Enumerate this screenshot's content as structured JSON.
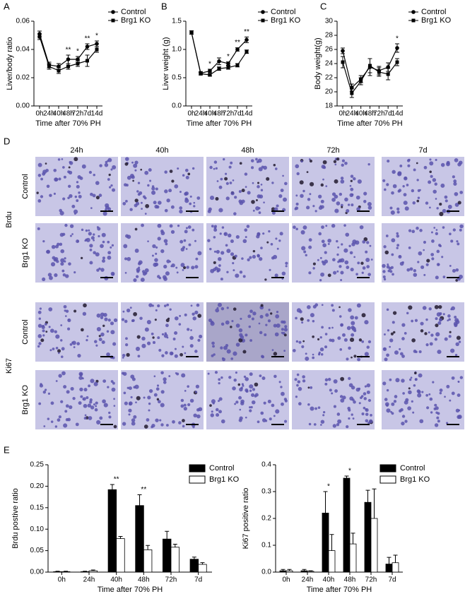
{
  "chart_data": [
    {
      "type": "line",
      "panel": "A",
      "ylabel": "Liver/body ratio",
      "xlabel": "Time after 70% PH",
      "categories": [
        "0h",
        "24h",
        "40h",
        "48h",
        "72h",
        "7d",
        "14d"
      ],
      "ylim": [
        0,
        0.06
      ],
      "yticks": [
        {
          "value": 0,
          "label": "0.00"
        },
        0.02,
        0.04,
        0.06
      ],
      "legend": "outside-top-right",
      "series": [
        {
          "name": "Control",
          "color": "#000000",
          "marker": "circle",
          "values": [
            0.051,
            0.029,
            0.028,
            0.033,
            0.033,
            0.042,
            0.044
          ],
          "errors": [
            0.002,
            0.002,
            0.002,
            0.003,
            0.002,
            0.002,
            0.002
          ]
        },
        {
          "name": "Brg1 KO",
          "color": "#000000",
          "marker": "square",
          "values": [
            0.049,
            0.028,
            0.025,
            0.028,
            0.03,
            0.032,
            0.04
          ],
          "errors": [
            0.002,
            0.002,
            0.002,
            0.002,
            0.002,
            0.004,
            0.002
          ]
        }
      ],
      "annotations": [
        {
          "x": "48h",
          "text": "**"
        },
        {
          "x": "72h",
          "text": "*"
        },
        {
          "x": "7d",
          "text": "**"
        },
        {
          "x": "14d",
          "text": "*"
        }
      ]
    },
    {
      "type": "line",
      "panel": "B",
      "ylabel": "Liver weight (g)",
      "xlabel": "Time after 70% PH",
      "categories": [
        "0h",
        "24h",
        "40h",
        "48h",
        "72h",
        "7d",
        "14d"
      ],
      "ylim": [
        0,
        1.5
      ],
      "yticks": [
        {
          "value": 0,
          "label": "0.0"
        },
        0.5,
        {
          "value": 1,
          "label": "1.0"
        },
        1.5
      ],
      "legend": "outside-top-right",
      "series": [
        {
          "name": "Control",
          "color": "#000000",
          "marker": "circle",
          "values": [
            1.3,
            0.58,
            0.62,
            0.79,
            0.75,
            1.0,
            1.17
          ],
          "errors": [
            0.03,
            0.03,
            0.03,
            0.06,
            0.03,
            0.03,
            0.05
          ]
        },
        {
          "name": "Brg1 KO",
          "color": "#000000",
          "marker": "square",
          "values": [
            1.3,
            0.57,
            0.55,
            0.66,
            0.68,
            0.72,
            0.96
          ],
          "errors": [
            0.03,
            0.02,
            0.02,
            0.03,
            0.03,
            0.03,
            0.03
          ]
        }
      ],
      "annotations": [
        {
          "x": "40h",
          "text": "*"
        },
        {
          "x": "72h",
          "text": "*"
        },
        {
          "x": "7d",
          "text": "**"
        },
        {
          "x": "14d",
          "text": "**"
        }
      ]
    },
    {
      "type": "line",
      "panel": "C",
      "ylabel": "Body weight(g)",
      "xlabel": "Time after 70% PH",
      "categories": [
        "0h",
        "24h",
        "40h",
        "48h",
        "72h",
        "7d",
        "14d"
      ],
      "ylim": [
        18,
        30
      ],
      "yticks": [
        18,
        20,
        22,
        24,
        26,
        28,
        30
      ],
      "legend": "outside-top-right",
      "series": [
        {
          "name": "Control",
          "color": "#000000",
          "marker": "circle",
          "values": [
            25.8,
            20.6,
            21.8,
            23.5,
            23.0,
            23.5,
            26.2
          ],
          "errors": [
            0.4,
            0.5,
            0.5,
            1.2,
            0.6,
            0.6,
            0.6
          ]
        },
        {
          "name": "Brg1 KO",
          "color": "#000000",
          "marker": "square",
          "values": [
            24.2,
            19.8,
            21.5,
            23.7,
            22.8,
            22.5,
            24.2
          ],
          "errors": [
            0.8,
            0.6,
            0.5,
            1.0,
            0.6,
            0.8,
            0.5
          ]
        }
      ],
      "annotations": [
        {
          "x": "14d",
          "text": "*"
        }
      ]
    },
    {
      "type": "bar",
      "panel": "E",
      "ylabel": "Brdu postive ratio",
      "xlabel": "Time after 70% PH",
      "categories": [
        "0h",
        "24h",
        "40h",
        "48h",
        "72h",
        "7d"
      ],
      "ylim": [
        0,
        0.25
      ],
      "yticks": [
        {
          "value": 0,
          "label": "0.00"
        },
        0.05,
        {
          "value": 0.1,
          "label": "0.10"
        },
        0.15,
        {
          "value": 0.2,
          "label": "0.20"
        },
        0.25
      ],
      "legend": "top-right",
      "series": [
        {
          "name": "Control",
          "color": "#000000",
          "values": [
            0.001,
            0.001,
            0.192,
            0.155,
            0.077,
            0.03
          ],
          "errors": [
            0.001,
            0.001,
            0.012,
            0.025,
            0.018,
            0.005
          ]
        },
        {
          "name": "Brg1 KO",
          "color": "#ffffff",
          "values": [
            0.001,
            0.003,
            0.078,
            0.052,
            0.058,
            0.018
          ],
          "errors": [
            0.001,
            0.002,
            0.005,
            0.01,
            0.007,
            0.004
          ]
        }
      ],
      "annotations": [
        {
          "x": "40h",
          "text": "**"
        },
        {
          "x": "48h",
          "text": "**"
        }
      ]
    },
    {
      "type": "bar",
      "ylabel": "Ki67 positive ratio",
      "xlabel": "Time after 70% PH",
      "categories": [
        "0h",
        "24h",
        "40h",
        "48h",
        "72h",
        "7d"
      ],
      "ylim": [
        0,
        0.4
      ],
      "yticks": [
        {
          "value": 0,
          "label": "0.0"
        },
        0.1,
        0.2,
        0.3,
        0.4
      ],
      "legend": "top-right",
      "series": [
        {
          "name": "Control",
          "color": "#000000",
          "values": [
            0.005,
            0.005,
            0.22,
            0.35,
            0.26,
            0.03
          ],
          "errors": [
            0.005,
            0.005,
            0.08,
            0.008,
            0.045,
            0.025
          ]
        },
        {
          "name": "Brg1 KO",
          "color": "#ffffff",
          "values": [
            0.005,
            0.003,
            0.08,
            0.105,
            0.2,
            0.035
          ],
          "errors": [
            0.005,
            0.002,
            0.06,
            0.04,
            0.11,
            0.028
          ]
        }
      ],
      "annotations": [
        {
          "x": "40h",
          "text": "*"
        },
        {
          "x": "48h",
          "text": "*"
        }
      ]
    }
  ],
  "micrographs": {
    "panel": "D",
    "columns": [
      "24h",
      "40h",
      "48h",
      "72h",
      "7d"
    ],
    "groups": [
      {
        "name": "Brdu",
        "rows": [
          "Control",
          "Brg1 KO"
        ]
      },
      {
        "name": "Ki67",
        "rows": [
          "Control",
          "Brg1 KO"
        ]
      }
    ]
  }
}
